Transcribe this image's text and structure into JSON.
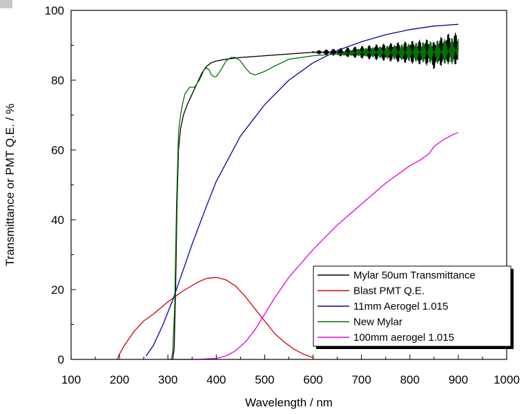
{
  "chart_data": {
    "type": "line",
    "title": "",
    "xlabel": "Wavelength / nm",
    "ylabel": "Transmittance or PMT Q.E. / %",
    "xlim": [
      100,
      1000
    ],
    "ylim": [
      0,
      100
    ],
    "xticks": [
      100,
      200,
      300,
      400,
      500,
      600,
      700,
      800,
      900,
      1000
    ],
    "yticks": [
      0,
      20,
      40,
      60,
      80,
      100
    ],
    "grid": false,
    "legend_position": "bottom-right",
    "series": [
      {
        "name": "Mylar 50um Transmittance",
        "color": "#000000",
        "noise_from": 600,
        "points": [
          [
            310,
            0
          ],
          [
            313,
            3
          ],
          [
            316,
            20
          ],
          [
            319,
            45
          ],
          [
            322,
            60
          ],
          [
            326,
            66
          ],
          [
            332,
            70
          ],
          [
            340,
            73
          ],
          [
            350,
            76
          ],
          [
            360,
            79
          ],
          [
            370,
            82
          ],
          [
            380,
            84
          ],
          [
            390,
            85
          ],
          [
            400,
            85.5
          ],
          [
            420,
            86
          ],
          [
            450,
            86.5
          ],
          [
            500,
            87
          ],
          [
            550,
            87.5
          ],
          [
            600,
            88
          ],
          [
            650,
            88
          ],
          [
            700,
            88
          ],
          [
            750,
            88
          ],
          [
            800,
            88
          ],
          [
            840,
            88
          ],
          [
            850,
            87
          ],
          [
            860,
            88
          ],
          [
            880,
            89
          ],
          [
            900,
            89
          ]
        ]
      },
      {
        "name": "Blast PMT Q.E.",
        "color": "#cc0000",
        "points": [
          [
            195,
            0
          ],
          [
            200,
            1.5
          ],
          [
            210,
            4
          ],
          [
            230,
            8
          ],
          [
            250,
            11
          ],
          [
            270,
            13
          ],
          [
            300,
            16.5
          ],
          [
            330,
            19.5
          ],
          [
            360,
            22
          ],
          [
            380,
            23.2
          ],
          [
            400,
            23.5
          ],
          [
            420,
            22.8
          ],
          [
            440,
            21
          ],
          [
            460,
            18
          ],
          [
            480,
            14.5
          ],
          [
            500,
            11
          ],
          [
            520,
            7.5
          ],
          [
            540,
            5
          ],
          [
            560,
            3
          ],
          [
            580,
            1.5
          ],
          [
            600,
            0.5
          ]
        ]
      },
      {
        "name": "11mm Aerogel 1.015",
        "color": "#0000a0",
        "points": [
          [
            255,
            1
          ],
          [
            270,
            4
          ],
          [
            290,
            10
          ],
          [
            310,
            17
          ],
          [
            330,
            25
          ],
          [
            350,
            33
          ],
          [
            380,
            44
          ],
          [
            400,
            51
          ],
          [
            450,
            64
          ],
          [
            500,
            73
          ],
          [
            550,
            80
          ],
          [
            600,
            85
          ],
          [
            650,
            88.5
          ],
          [
            700,
            91
          ],
          [
            750,
            93
          ],
          [
            800,
            94.5
          ],
          [
            850,
            95.5
          ],
          [
            900,
            96
          ]
        ]
      },
      {
        "name": "New Mylar",
        "color": "#007000",
        "noise_from": 650,
        "points": [
          [
            307,
            0
          ],
          [
            310,
            2
          ],
          [
            314,
            15
          ],
          [
            318,
            45
          ],
          [
            322,
            65
          ],
          [
            326,
            70
          ],
          [
            330,
            73
          ],
          [
            335,
            76
          ],
          [
            345,
            78
          ],
          [
            355,
            78
          ],
          [
            365,
            80
          ],
          [
            375,
            83
          ],
          [
            380,
            83.5
          ],
          [
            385,
            83
          ],
          [
            390,
            81.5
          ],
          [
            395,
            81
          ],
          [
            400,
            81
          ],
          [
            410,
            83
          ],
          [
            420,
            85.5
          ],
          [
            430,
            86.5
          ],
          [
            440,
            86.5
          ],
          [
            450,
            85.5
          ],
          [
            460,
            83.5
          ],
          [
            470,
            82
          ],
          [
            480,
            81.5
          ],
          [
            500,
            82.5
          ],
          [
            520,
            84
          ],
          [
            550,
            86
          ],
          [
            600,
            87
          ],
          [
            650,
            87.5
          ],
          [
            700,
            88
          ],
          [
            750,
            88
          ],
          [
            800,
            88
          ],
          [
            850,
            88
          ],
          [
            900,
            88.5
          ]
        ]
      },
      {
        "name": "100mm aerogel 1.015",
        "color": "#e000e0",
        "points": [
          [
            300,
            0
          ],
          [
            360,
            0
          ],
          [
            400,
            0.3
          ],
          [
            420,
            1
          ],
          [
            440,
            2.5
          ],
          [
            460,
            5
          ],
          [
            480,
            8.5
          ],
          [
            500,
            13
          ],
          [
            520,
            17.5
          ],
          [
            550,
            23.5
          ],
          [
            600,
            31.5
          ],
          [
            650,
            38.5
          ],
          [
            700,
            44.5
          ],
          [
            750,
            50.5
          ],
          [
            800,
            55.5
          ],
          [
            820,
            57
          ],
          [
            840,
            59
          ],
          [
            850,
            61
          ],
          [
            870,
            63
          ],
          [
            890,
            64.5
          ],
          [
            900,
            65
          ]
        ]
      }
    ]
  }
}
